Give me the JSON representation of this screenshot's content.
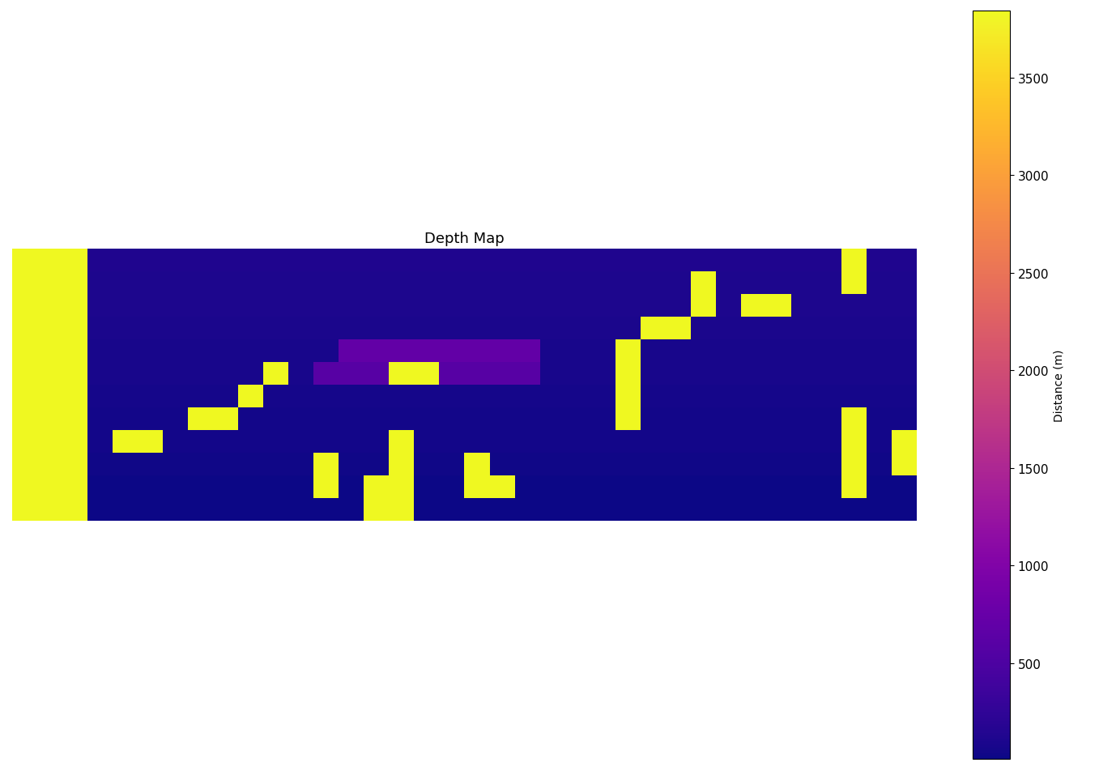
{
  "chart_data": {
    "type": "heatmap",
    "title": "Depth Map",
    "color": "plasma",
    "tick_labels": false,
    "colorbar_label": "Distance (m)",
    "color_range": [
      10,
      3844
    ],
    "color_ticks": [
      500,
      1000,
      1500,
      2000,
      2500,
      3000,
      3500
    ],
    "cells": [
      [
        3844,
        3844,
        3844,
        120,
        120,
        120,
        120,
        120,
        120,
        120,
        120,
        120,
        120,
        120,
        120,
        120,
        120,
        120,
        120,
        120,
        120,
        120,
        120,
        120,
        120,
        120,
        120,
        120,
        120,
        120,
        120,
        120,
        120,
        3844,
        120,
        120
      ],
      [
        3844,
        3844,
        3844,
        110,
        110,
        110,
        110,
        110,
        110,
        110,
        110,
        110,
        110,
        110,
        110,
        110,
        110,
        110,
        110,
        110,
        110,
        110,
        110,
        110,
        110,
        110,
        110,
        3844,
        110,
        110,
        110,
        110,
        110,
        3844,
        110,
        110
      ],
      [
        3844,
        3844,
        3844,
        100,
        100,
        100,
        100,
        100,
        100,
        100,
        100,
        100,
        100,
        100,
        100,
        100,
        100,
        100,
        100,
        100,
        100,
        100,
        100,
        100,
        100,
        100,
        100,
        3844,
        100,
        3844,
        3844,
        100,
        100,
        100,
        100,
        100
      ],
      [
        3844,
        3844,
        3844,
        90,
        90,
        90,
        90,
        90,
        90,
        90,
        90,
        90,
        90,
        90,
        90,
        90,
        90,
        90,
        90,
        90,
        90,
        90,
        90,
        90,
        90,
        3844,
        3844,
        90,
        90,
        90,
        90,
        90,
        90,
        90,
        90,
        90
      ],
      [
        3844,
        3844,
        3844,
        80,
        80,
        80,
        80,
        80,
        80,
        80,
        80,
        80,
        80,
        700,
        700,
        700,
        700,
        700,
        700,
        700,
        700,
        80,
        80,
        80,
        3844,
        80,
        80,
        80,
        80,
        80,
        80,
        80,
        80,
        80,
        80,
        80
      ],
      [
        3844,
        3844,
        3844,
        70,
        70,
        70,
        70,
        70,
        70,
        70,
        3844,
        70,
        600,
        600,
        600,
        3844,
        3844,
        600,
        600,
        600,
        600,
        70,
        70,
        70,
        3844,
        70,
        70,
        70,
        70,
        70,
        70,
        70,
        70,
        70,
        70,
        70
      ],
      [
        3844,
        3844,
        3844,
        60,
        60,
        60,
        60,
        60,
        60,
        3844,
        60,
        60,
        60,
        60,
        60,
        60,
        60,
        60,
        60,
        60,
        60,
        60,
        60,
        60,
        3844,
        60,
        60,
        60,
        60,
        60,
        60,
        60,
        60,
        60,
        60,
        60
      ],
      [
        3844,
        3844,
        3844,
        50,
        50,
        50,
        50,
        3844,
        3844,
        50,
        50,
        50,
        50,
        50,
        50,
        50,
        50,
        50,
        50,
        50,
        50,
        50,
        50,
        50,
        3844,
        50,
        50,
        50,
        50,
        50,
        50,
        50,
        50,
        3844,
        50,
        50
      ],
      [
        3844,
        3844,
        3844,
        40,
        3844,
        3844,
        40,
        40,
        40,
        40,
        40,
        40,
        40,
        40,
        40,
        3844,
        40,
        40,
        40,
        40,
        40,
        40,
        40,
        40,
        40,
        40,
        40,
        40,
        40,
        40,
        40,
        40,
        40,
        3844,
        40,
        3844
      ],
      [
        3844,
        3844,
        3844,
        30,
        30,
        30,
        30,
        30,
        30,
        30,
        30,
        30,
        3844,
        30,
        30,
        3844,
        30,
        30,
        3844,
        30,
        30,
        30,
        30,
        30,
        30,
        30,
        30,
        30,
        30,
        30,
        30,
        30,
        30,
        3844,
        30,
        3844
      ],
      [
        3844,
        3844,
        3844,
        20,
        20,
        20,
        20,
        20,
        20,
        20,
        20,
        20,
        3844,
        20,
        3844,
        3844,
        20,
        20,
        3844,
        3844,
        20,
        20,
        20,
        20,
        20,
        20,
        20,
        20,
        20,
        20,
        20,
        20,
        20,
        3844,
        20,
        20
      ],
      [
        3844,
        3844,
        3844,
        15,
        15,
        15,
        15,
        15,
        15,
        15,
        15,
        15,
        15,
        15,
        3844,
        3844,
        15,
        15,
        15,
        15,
        15,
        15,
        15,
        15,
        15,
        15,
        15,
        15,
        15,
        15,
        15,
        15,
        15,
        15,
        15,
        15
      ]
    ]
  }
}
